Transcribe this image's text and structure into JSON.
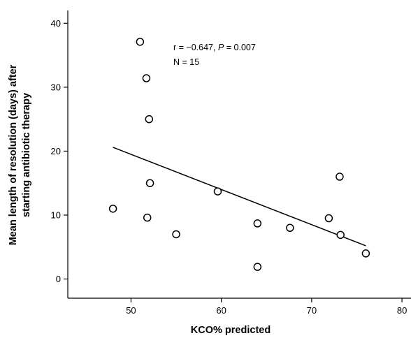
{
  "chart_data": {
    "type": "scatter",
    "xlabel": "KCO% predicted",
    "ylabel_lines": [
      "Mean length of resolution (days) after",
      "starting antibiotic therapy"
    ],
    "xlim": [
      43,
      81
    ],
    "ylim": [
      -3,
      42
    ],
    "x_ticks": [
      50,
      60,
      70,
      80
    ],
    "y_ticks": [
      0,
      10,
      20,
      30,
      40
    ],
    "annotation": {
      "line1_prefix": "r = −0.647, ",
      "line1_italic": "P",
      "line1_suffix": " = 0.007",
      "line2": "N = 15"
    },
    "points": [
      {
        "x": 51.0,
        "y": 37.1
      },
      {
        "x": 51.7,
        "y": 31.4
      },
      {
        "x": 52.0,
        "y": 25.0
      },
      {
        "x": 52.1,
        "y": 15.0
      },
      {
        "x": 51.8,
        "y": 9.6
      },
      {
        "x": 48.0,
        "y": 11.0
      },
      {
        "x": 55.0,
        "y": 7.0
      },
      {
        "x": 59.6,
        "y": 13.7
      },
      {
        "x": 64.0,
        "y": 8.7
      },
      {
        "x": 64.0,
        "y": 1.9
      },
      {
        "x": 67.6,
        "y": 8.0
      },
      {
        "x": 71.9,
        "y": 9.5
      },
      {
        "x": 73.1,
        "y": 16.0
      },
      {
        "x": 73.2,
        "y": 6.9
      },
      {
        "x": 76.0,
        "y": 4.0
      }
    ],
    "fit_line": {
      "x1": 48.0,
      "y1": 20.6,
      "x2": 76.0,
      "y2": 5.2
    },
    "grid": false,
    "legend": "none"
  }
}
